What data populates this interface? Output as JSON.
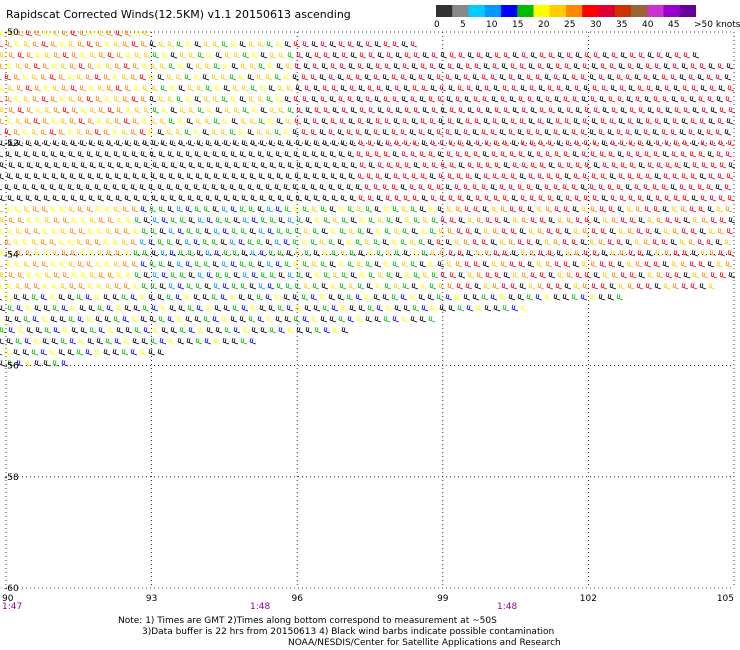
{
  "title": "Rapidscat Corrected Winds(12.5KM) v1.1 20150613 ascending",
  "colorbar": {
    "colors": [
      "#333333",
      "#888888",
      "#00ccff",
      "#0099ff",
      "#0000ff",
      "#00bb00",
      "#ffff00",
      "#ffcc00",
      "#ff8800",
      "#ff0000",
      "#dd0033",
      "#cc3300",
      "#996633",
      "#cc33cc",
      "#9900cc",
      "#660099"
    ],
    "labels": [
      "0",
      "5",
      "10",
      "15",
      "20",
      "25",
      "30",
      "35",
      "40",
      "45",
      ">50 knots"
    ]
  },
  "axes": {
    "lon_ticks": [
      "90",
      "93",
      "96",
      "99",
      "102",
      "105"
    ],
    "lat_ticks": [
      "-50",
      "-52",
      "-54",
      "-56",
      "-58",
      "-60"
    ],
    "lon_range": [
      90,
      105
    ],
    "lat_range": [
      -60,
      -50
    ],
    "grid": "dotted"
  },
  "time_labels": [
    "1:47",
    "1:48",
    "1:48"
  ],
  "time_color": "#990099",
  "notes": [
    "Note: 1) Times are GMT 2)Times along bottom correspond to measurement at ~50S",
    "3)Data buffer is 22 hrs from 20150613 4) Black wind barbs indicate possible contamination",
    "NOAA/NESDIS/Center for Satellite Applications and Research"
  ]
}
